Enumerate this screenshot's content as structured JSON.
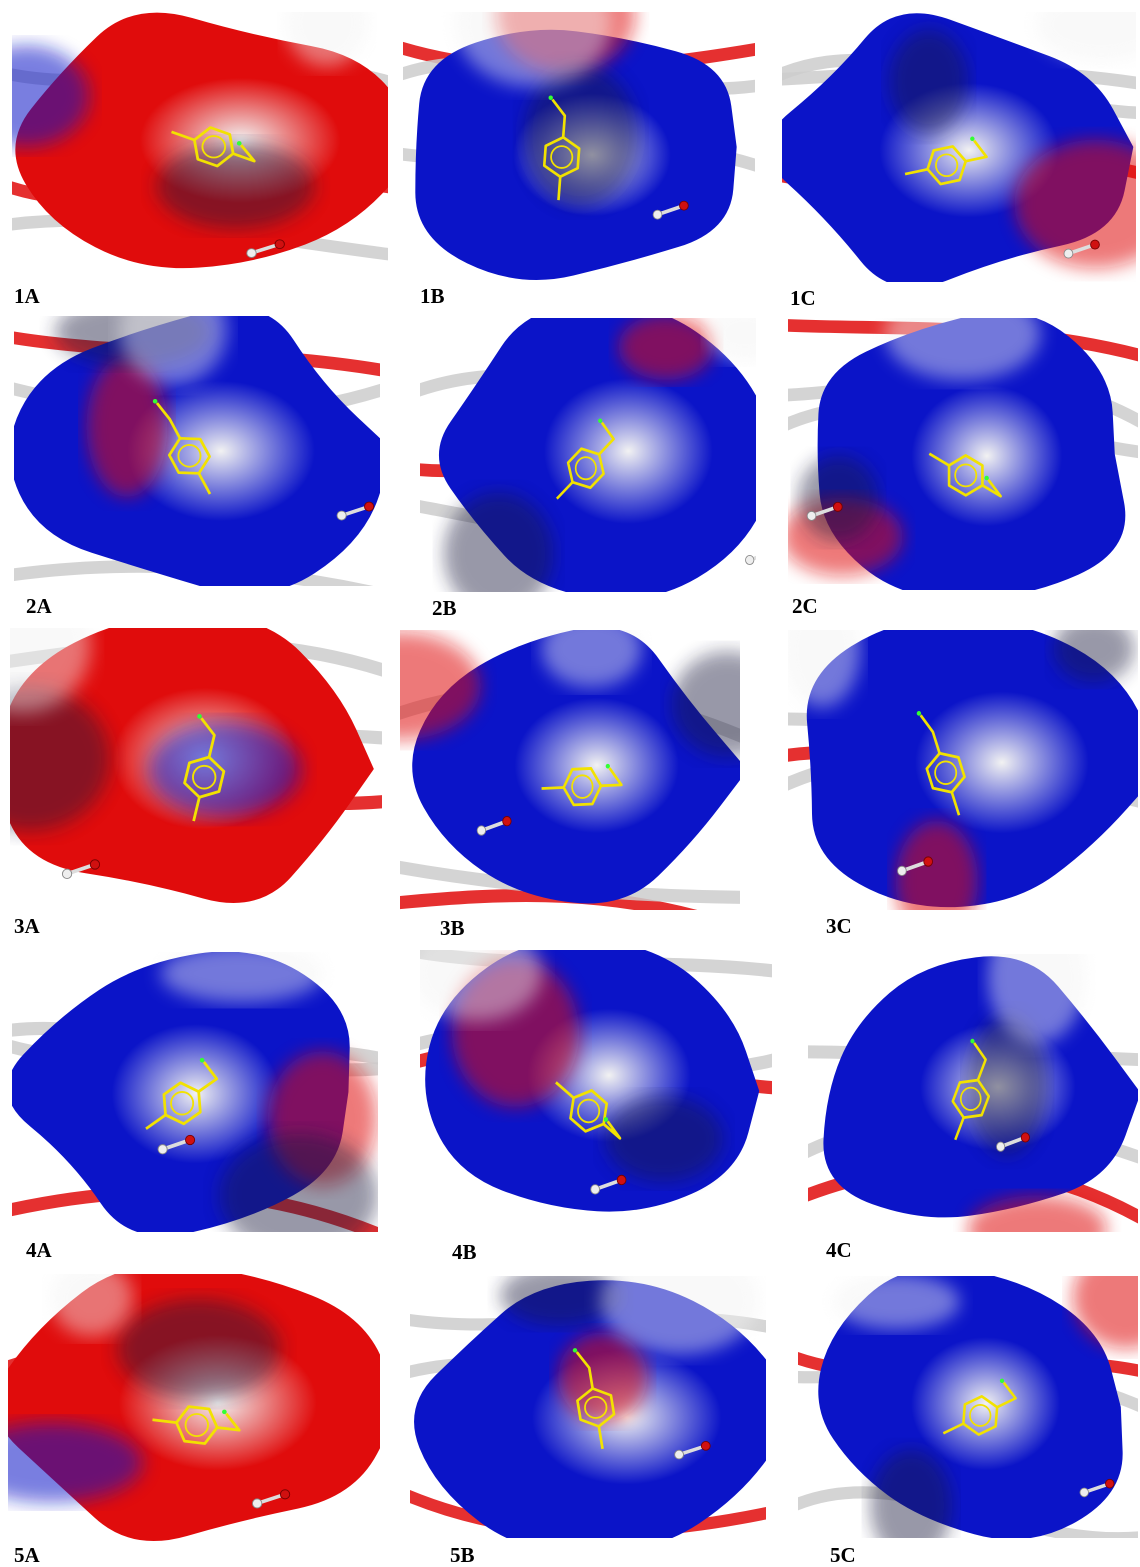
{
  "colors": {
    "positive": "#0b14c8",
    "negative": "#e00c0c",
    "neutral": "#f2f2f2",
    "ligand": "#f2e200",
    "ribbon": "#cccccc"
  },
  "panels": [
    {
      "id": "1A",
      "label": "1A",
      "dominant": "red"
    },
    {
      "id": "1B",
      "label": "1B",
      "dominant": "blue"
    },
    {
      "id": "1C",
      "label": "1C",
      "dominant": "blue"
    },
    {
      "id": "2A",
      "label": "2A",
      "dominant": "blue"
    },
    {
      "id": "2B",
      "label": "2B",
      "dominant": "blue"
    },
    {
      "id": "2C",
      "label": "2C",
      "dominant": "blue"
    },
    {
      "id": "3A",
      "label": "3A",
      "dominant": "red"
    },
    {
      "id": "3B",
      "label": "3B",
      "dominant": "blue"
    },
    {
      "id": "3C",
      "label": "3C",
      "dominant": "blue"
    },
    {
      "id": "4A",
      "label": "4A",
      "dominant": "blue"
    },
    {
      "id": "4B",
      "label": "4B",
      "dominant": "blue"
    },
    {
      "id": "4C",
      "label": "4C",
      "dominant": "blue"
    },
    {
      "id": "5A",
      "label": "5A",
      "dominant": "red"
    },
    {
      "id": "5B",
      "label": "5B",
      "dominant": "blue"
    },
    {
      "id": "5C",
      "label": "5C",
      "dominant": "blue"
    }
  ]
}
